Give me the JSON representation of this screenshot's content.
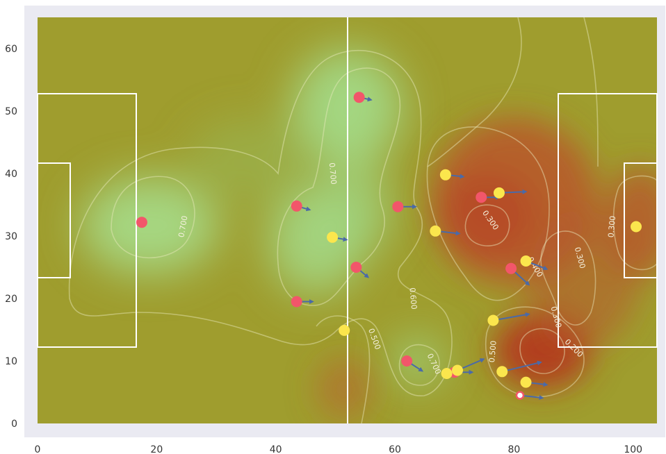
{
  "chart_data": {
    "type": "scatter",
    "title": "",
    "xlabel": "",
    "ylabel": "",
    "xlim": [
      0,
      100
    ],
    "ylim": [
      0,
      65
    ],
    "xticks": [
      0,
      20,
      40,
      60,
      80,
      100
    ],
    "yticks": [
      0,
      10,
      20,
      30,
      40,
      50,
      60
    ],
    "grid": false,
    "pitch": {
      "length": 104,
      "width": 65
    },
    "colors": {
      "background": "#eaeaf2",
      "pitch_base": "#9f9d2e",
      "field_line": "#ffffff",
      "team_red": "#f2566a",
      "team_yellow": "#fbe64d",
      "arrow": "#4a6aa8",
      "contour": "#ecebbf"
    },
    "contour_labels": [
      {
        "text": "0.700",
        "x": 24.5,
        "y": 31.5,
        "angle": -80
      },
      {
        "text": "0.700",
        "x": 49.5,
        "y": 40,
        "angle": 85
      },
      {
        "text": "0.600",
        "x": 63,
        "y": 20,
        "angle": 85
      },
      {
        "text": "0.500",
        "x": 56.5,
        "y": 13.5,
        "angle": 70
      },
      {
        "text": "0.700",
        "x": 66.5,
        "y": 9.5,
        "angle": 65
      },
      {
        "text": "0.500",
        "x": 76.5,
        "y": 11.5,
        "angle": -85
      },
      {
        "text": "0.300",
        "x": 76,
        "y": 32.5,
        "angle": 55
      },
      {
        "text": "0.400",
        "x": 83.5,
        "y": 25,
        "angle": 60
      },
      {
        "text": "0.300",
        "x": 91,
        "y": 26.5,
        "angle": 75
      },
      {
        "text": "0.300",
        "x": 87,
        "y": 17,
        "angle": 75
      },
      {
        "text": "0.200",
        "x": 90,
        "y": 12,
        "angle": 45
      },
      {
        "text": "0.300",
        "x": 96.5,
        "y": 31.5,
        "angle": -85
      }
    ],
    "series": [
      {
        "team": "red",
        "points": [
          {
            "x": 17.5,
            "y": 32.2,
            "dx": 0,
            "dy": 0
          },
          {
            "x": 43.5,
            "y": 34.8,
            "dx": 2.2,
            "dy": -0.6
          },
          {
            "x": 43.5,
            "y": 19.5,
            "dx": 2.7,
            "dy": 0
          },
          {
            "x": 53.5,
            "y": 25,
            "dx": 2,
            "dy": -1.6
          },
          {
            "x": 54,
            "y": 52.2,
            "dx": 2,
            "dy": -0.4
          },
          {
            "x": 60.5,
            "y": 34.7,
            "dx": 3,
            "dy": 0
          },
          {
            "x": 62,
            "y": 10,
            "dx": 2.6,
            "dy": -1.6
          },
          {
            "x": 70,
            "y": 8.2,
            "dx": 3,
            "dy": 0
          },
          {
            "x": 74.5,
            "y": 36.2,
            "dx": 3,
            "dy": 0
          },
          {
            "x": 79.5,
            "y": 24.8,
            "dx": 3,
            "dy": -2.6
          }
        ]
      },
      {
        "team": "yellow",
        "points": [
          {
            "x": 49.5,
            "y": 29.8,
            "dx": 2.4,
            "dy": -0.4
          },
          {
            "x": 51.5,
            "y": 14.9,
            "dx": 0,
            "dy": 0
          },
          {
            "x": 66.8,
            "y": 30.8,
            "dx": 4,
            "dy": -0.4
          },
          {
            "x": 68.5,
            "y": 39.8,
            "dx": 3,
            "dy": -0.3
          },
          {
            "x": 68.7,
            "y": 8,
            "dx": 0,
            "dy": 0
          },
          {
            "x": 70.5,
            "y": 8.5,
            "dx": 4.4,
            "dy": 1.8
          },
          {
            "x": 76.5,
            "y": 16.5,
            "dx": 6,
            "dy": 1
          },
          {
            "x": 77.5,
            "y": 36.9,
            "dx": 4.5,
            "dy": 0.2
          },
          {
            "x": 78,
            "y": 8.3,
            "dx": 6.5,
            "dy": 1.5
          },
          {
            "x": 82,
            "y": 26,
            "dx": 3.5,
            "dy": -1.3
          },
          {
            "x": 82,
            "y": 6.6,
            "dx": 3.5,
            "dy": -0.4
          },
          {
            "x": 100.5,
            "y": 31.5,
            "dx": 0,
            "dy": 0
          }
        ]
      },
      {
        "team": "ball",
        "points": [
          {
            "x": 81,
            "y": 4.5,
            "dx": 3.8,
            "dy": -0.4
          }
        ]
      }
    ]
  }
}
